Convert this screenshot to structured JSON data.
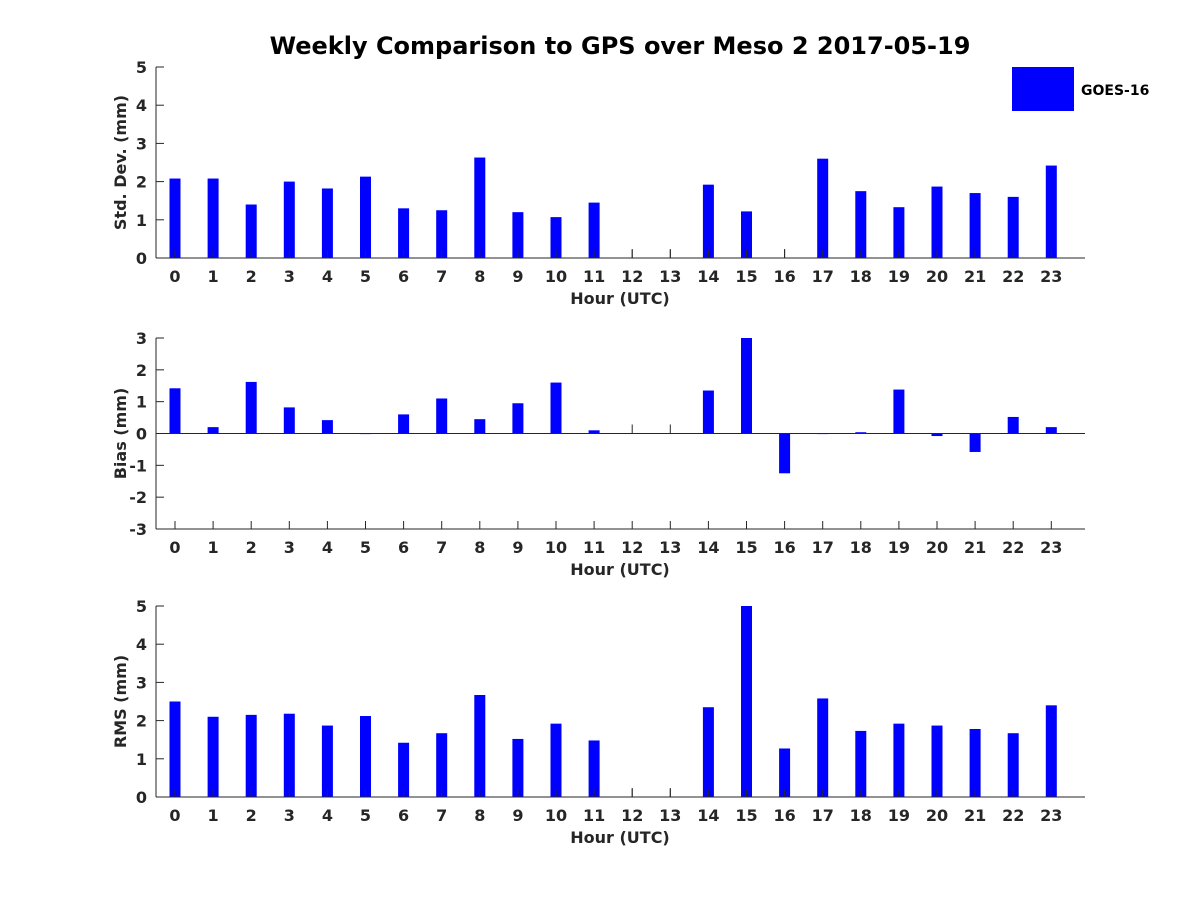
{
  "title": "Weekly Comparison to GPS over Meso 2 2017-05-19",
  "legend": {
    "label": "GOES-16",
    "color": "#0000FF"
  },
  "bar_color": "#0000FF",
  "chart_data": [
    {
      "type": "bar",
      "xlabel": "Hour (UTC)",
      "ylabel": "Std. Dev. (mm)",
      "ylim": [
        0,
        5
      ],
      "yticks": [
        0,
        1,
        2,
        3,
        4,
        5
      ],
      "categories": [
        "0",
        "1",
        "2",
        "3",
        "4",
        "5",
        "6",
        "7",
        "8",
        "9",
        "10",
        "11",
        "12",
        "13",
        "14",
        "15",
        "16",
        "17",
        "18",
        "19",
        "20",
        "21",
        "22",
        "23"
      ],
      "values": [
        2.08,
        2.08,
        1.4,
        2.0,
        1.82,
        2.13,
        1.3,
        1.25,
        2.63,
        1.2,
        1.07,
        1.45,
        null,
        null,
        1.92,
        1.22,
        null,
        2.6,
        1.75,
        1.33,
        1.87,
        1.7,
        1.6,
        2.42
      ]
    },
    {
      "type": "bar",
      "xlabel": "Hour (UTC)",
      "ylabel": "Bias (mm)",
      "ylim": [
        -3,
        3
      ],
      "yticks": [
        -3,
        -2,
        -1,
        0,
        1,
        2,
        3
      ],
      "categories": [
        "0",
        "1",
        "2",
        "3",
        "4",
        "5",
        "6",
        "7",
        "8",
        "9",
        "10",
        "11",
        "12",
        "13",
        "14",
        "15",
        "16",
        "17",
        "18",
        "19",
        "20",
        "21",
        "22",
        "23"
      ],
      "values": [
        1.42,
        0.2,
        1.62,
        0.82,
        0.42,
        0.0,
        0.6,
        1.1,
        0.45,
        0.95,
        1.6,
        0.1,
        null,
        null,
        1.35,
        3.0,
        -1.25,
        0.0,
        0.04,
        1.38,
        -0.08,
        -0.58,
        0.52,
        0.2
      ]
    },
    {
      "type": "bar",
      "xlabel": "Hour (UTC)",
      "ylabel": "RMS (mm)",
      "ylim": [
        0,
        5
      ],
      "yticks": [
        0,
        1,
        2,
        3,
        4,
        5
      ],
      "categories": [
        "0",
        "1",
        "2",
        "3",
        "4",
        "5",
        "6",
        "7",
        "8",
        "9",
        "10",
        "11",
        "12",
        "13",
        "14",
        "15",
        "16",
        "17",
        "18",
        "19",
        "20",
        "21",
        "22",
        "23"
      ],
      "values": [
        2.5,
        2.1,
        2.15,
        2.18,
        1.87,
        2.12,
        1.42,
        1.67,
        2.67,
        1.52,
        1.92,
        1.48,
        null,
        null,
        2.35,
        5.0,
        1.27,
        2.58,
        1.73,
        1.92,
        1.87,
        1.78,
        1.67,
        2.4
      ]
    }
  ]
}
